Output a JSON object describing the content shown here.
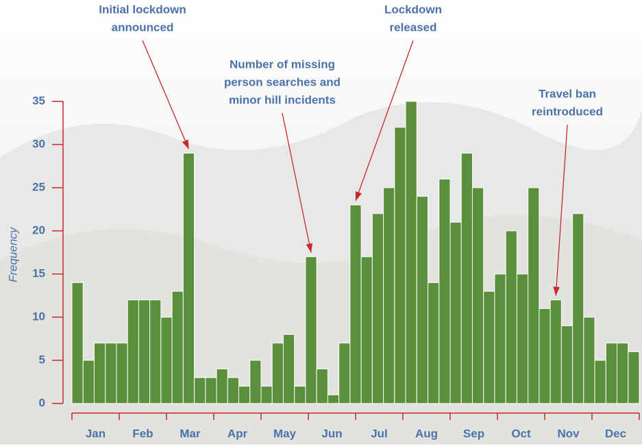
{
  "chart_data": {
    "type": "bar",
    "y_label": "Frequency",
    "months": [
      "Jan",
      "Feb",
      "Mar",
      "Apr",
      "May",
      "Jun",
      "Jul",
      "Aug",
      "Sep",
      "Oct",
      "Nov",
      "Dec"
    ],
    "values": [
      14,
      5,
      7,
      7,
      7,
      12,
      12,
      12,
      10,
      13,
      29,
      3,
      3,
      4,
      3,
      2,
      5,
      2,
      7,
      8,
      2,
      17,
      4,
      1,
      7,
      23,
      17,
      22,
      25,
      32,
      35,
      24,
      14,
      26,
      21,
      29,
      25,
      13,
      15,
      20,
      15,
      25,
      11,
      12,
      9,
      22,
      10,
      5,
      7,
      7,
      6
    ],
    "color": "#5b8f3b",
    "ylim": [
      0,
      35
    ],
    "yticks": [
      0,
      5,
      10,
      15,
      20,
      25,
      30,
      35
    ],
    "annotations": [
      {
        "lines": [
          "Initial lockdown",
          "announced"
        ],
        "bar": 10
      },
      {
        "lines": [
          "Number of missing",
          "person searches and",
          "minor hill incidents"
        ],
        "bar": 21
      },
      {
        "lines": [
          "Lockdown",
          "released"
        ],
        "bar": 25
      },
      {
        "lines": [
          "Travel ban",
          "reintroduced"
        ],
        "bar": 43
      }
    ]
  }
}
